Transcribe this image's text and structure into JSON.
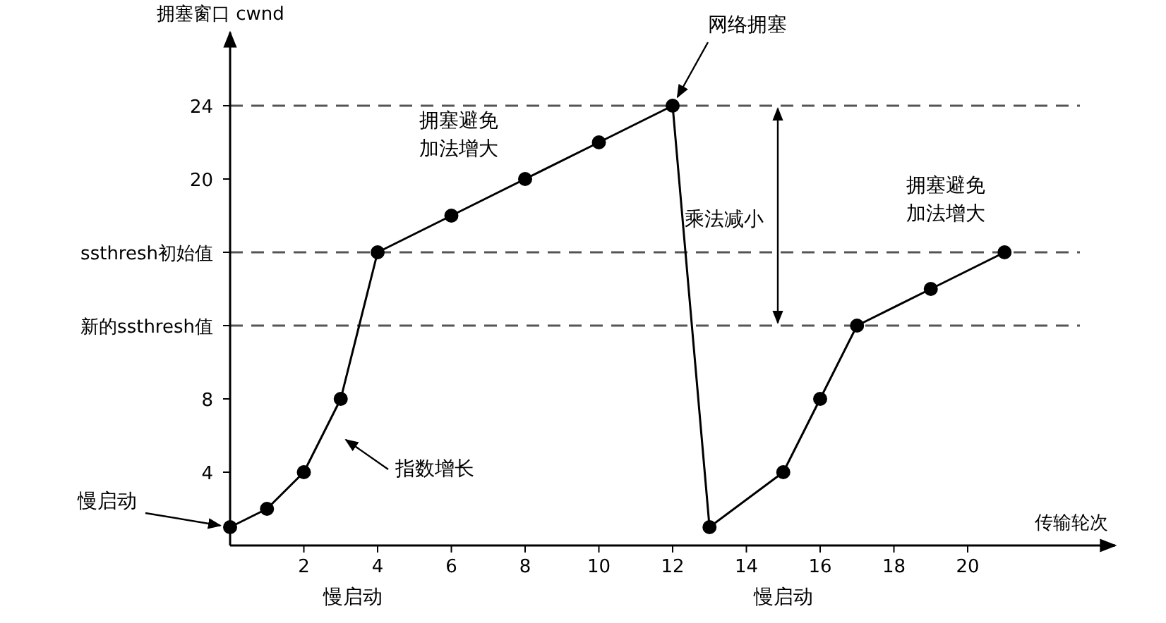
{
  "chart_data": {
    "type": "line",
    "xlabel": "传输轮次",
    "ylabel": "拥塞窗口 cwnd",
    "x": [
      0,
      1,
      2,
      3,
      4,
      6,
      8,
      10,
      12,
      13,
      15,
      16,
      17,
      19,
      21
    ],
    "series": [
      {
        "color": "#000000",
        "values": [
          1,
          2,
          4,
          8,
          16,
          18,
          20,
          22,
          24,
          1,
          4,
          8,
          12,
          14,
          16
        ]
      }
    ],
    "xlim": [
      0,
      24
    ],
    "ylim": [
      0,
      28
    ],
    "xticks": [
      2,
      4,
      6,
      8,
      10,
      12,
      14,
      16,
      18,
      20
    ],
    "yticks": [
      4,
      8,
      {
        "value": 12,
        "label": "新的ssthresh值"
      },
      {
        "value": 16,
        "label": "ssthresh初始值"
      },
      20,
      24
    ],
    "marker": "circle",
    "line_style": "solid",
    "grid": false,
    "ref_lines": [
      {
        "axis": "y",
        "value": 24,
        "color": "#555555",
        "line_style": "dashed"
      },
      {
        "axis": "y",
        "value": 16,
        "color": "#555555",
        "line_style": "dashed"
      },
      {
        "axis": "y",
        "value": 12,
        "color": "#555555",
        "line_style": "dashed"
      }
    ],
    "annotations": [
      {
        "text": "慢启动",
        "x": 0,
        "y": 1
      },
      "指数增长",
      "拥塞避免加法增大",
      {
        "text": "网络拥塞",
        "x": 12,
        "y": 24
      },
      "乘法减小",
      "拥塞避免加法增大",
      "慢启动",
      "慢启动"
    ]
  }
}
